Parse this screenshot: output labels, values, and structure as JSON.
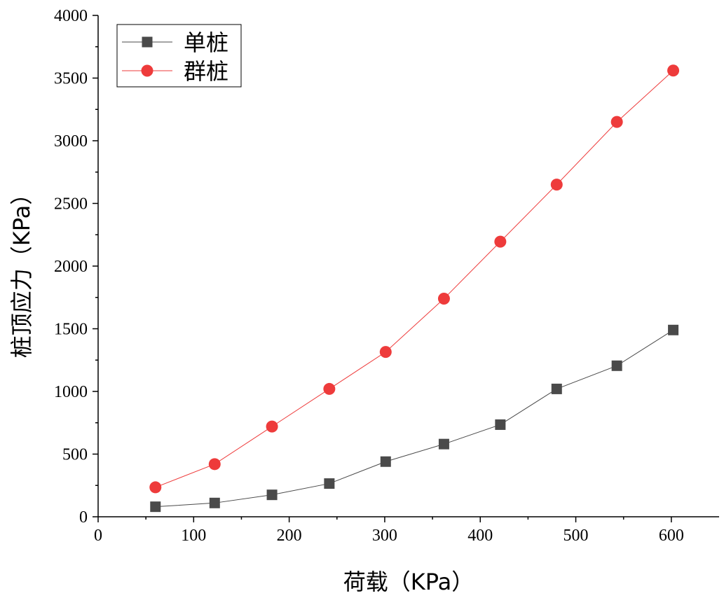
{
  "chart_data": {
    "type": "line",
    "xlabel": "荷载（KPa）",
    "ylabel": "桩顶应力（KPa）",
    "xlim": [
      0,
      650
    ],
    "ylim": [
      0,
      4000
    ],
    "x_ticks": [
      0,
      100,
      200,
      300,
      400,
      500,
      600
    ],
    "y_ticks": [
      0,
      500,
      1000,
      1500,
      2000,
      2500,
      3000,
      3500,
      4000
    ],
    "grid": false,
    "legend_position": "top-left",
    "series": [
      {
        "name": "单桩",
        "color": "#4a4a4a",
        "marker": "square",
        "points": [
          {
            "x": 60,
            "y": 80
          },
          {
            "x": 122,
            "y": 110
          },
          {
            "x": 182,
            "y": 175
          },
          {
            "x": 242,
            "y": 265
          },
          {
            "x": 301,
            "y": 440
          },
          {
            "x": 362,
            "y": 580
          },
          {
            "x": 421,
            "y": 735
          },
          {
            "x": 480,
            "y": 1020
          },
          {
            "x": 543,
            "y": 1205
          },
          {
            "x": 602,
            "y": 1490
          }
        ]
      },
      {
        "name": "群桩",
        "color": "#ee3b3b",
        "marker": "circle",
        "points": [
          {
            "x": 60,
            "y": 235
          },
          {
            "x": 122,
            "y": 420
          },
          {
            "x": 182,
            "y": 720
          },
          {
            "x": 242,
            "y": 1020
          },
          {
            "x": 301,
            "y": 1315
          },
          {
            "x": 362,
            "y": 1740
          },
          {
            "x": 421,
            "y": 2195
          },
          {
            "x": 480,
            "y": 2650
          },
          {
            "x": 543,
            "y": 3150
          },
          {
            "x": 602,
            "y": 3560
          }
        ]
      }
    ]
  }
}
